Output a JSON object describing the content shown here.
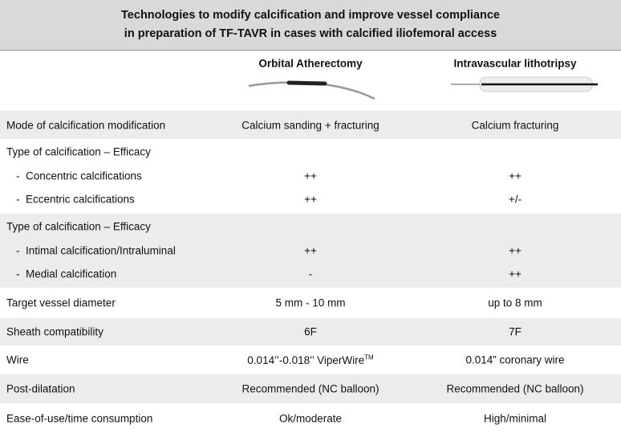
{
  "title": [
    "Technologies to modify calcification and improve vessel compliance",
    "in preparation of TF-TAVR in cases with calcified iliofemoral access"
  ],
  "columns": [
    "Orbital Atherectomy",
    "Intravascular lithotripsy"
  ],
  "rows": [
    {
      "label": "Mode of calcification modification",
      "values": [
        "Calcium sanding + fracturing",
        "Calcium fracturing"
      ]
    },
    {
      "label": "Type of calcification – Efficacy",
      "items": [
        {
          "label": "Concentric calcifications",
          "values": [
            "++",
            "++"
          ]
        },
        {
          "label": "Eccentric calcifications",
          "values": [
            "++",
            "+/-"
          ]
        }
      ]
    },
    {
      "label": "Type of calcification – Efficacy",
      "items": [
        {
          "label": "Intimal calcification/Intraluminal",
          "values": [
            "++",
            "++"
          ]
        },
        {
          "label": "Medial calcification",
          "values": [
            "-",
            "++"
          ]
        }
      ]
    },
    {
      "label": "Target vessel diameter",
      "values": [
        "5 mm - 10 mm",
        "up to 8 mm"
      ]
    },
    {
      "label": "Sheath compatibility",
      "values": [
        "6F",
        "7F"
      ]
    },
    {
      "label": "Wire",
      "values": [
        {
          "text": "0.014’’-0.018’’ ViperWire",
          "sup": "TM"
        },
        "0.014” coronary wire"
      ]
    },
    {
      "label": "Post-dilatation",
      "values": [
        "Recommended (NC balloon)",
        "Recommended (NC balloon)"
      ]
    },
    {
      "label": "Ease-of-use/time consumption",
      "values": [
        "Ok/moderate",
        "High/minimal"
      ]
    }
  ]
}
